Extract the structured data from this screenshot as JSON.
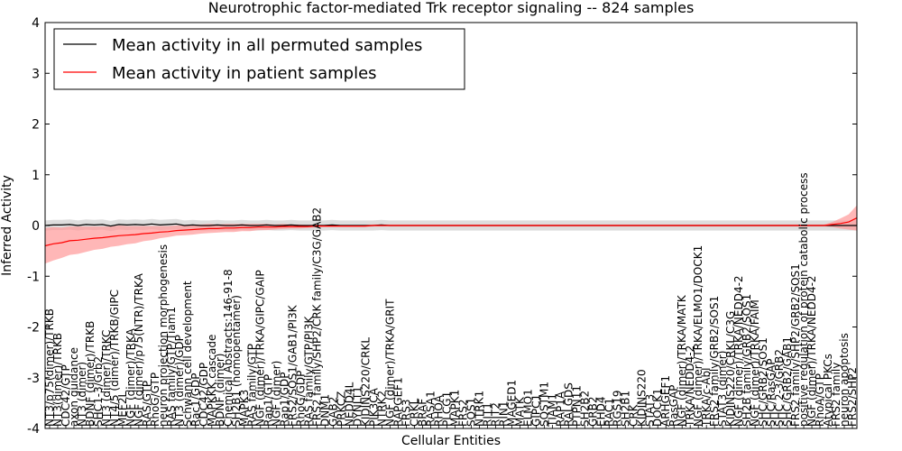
{
  "chart_data": {
    "type": "line",
    "title": "Neurotrophic factor-mediated Trk receptor signaling -- 824 samples",
    "xlabel": "Cellular Entities",
    "ylabel": "Inferred Activity",
    "ylim": [
      -4,
      4
    ],
    "yticks": [
      -4,
      -3,
      -2,
      -1,
      0,
      1,
      2,
      3,
      4
    ],
    "grid": false,
    "legend_position": "top-left",
    "x_count": 100,
    "series": [
      {
        "name": "Mean activity in all permuted samples",
        "color": "#000000",
        "band_color": "#c8c8c8",
        "mean": [
          0.0,
          0.01,
          0.01,
          0.02,
          0.0,
          0.02,
          0.01,
          0.02,
          -0.01,
          0.02,
          0.01,
          0.02,
          0.01,
          0.03,
          0.01,
          0.02,
          0.03,
          0.0,
          0.01,
          0.0,
          0.0,
          0.01,
          0.0,
          0.0,
          0.01,
          0.0,
          0.0,
          0.01,
          0.0,
          0.0,
          0.01,
          0.0,
          0.0,
          0.0,
          0.0,
          0.01,
          0.0,
          0.0,
          0.0,
          0.0,
          0.0,
          0.01,
          0.0,
          0.0,
          0.0,
          0.0,
          0.0,
          0.0,
          0.0,
          0.0,
          0.0,
          0.0,
          0.0,
          0.0,
          0.0,
          0.0,
          0.0,
          0.0,
          0.0,
          0.0,
          0.0,
          0.0,
          0.0,
          0.0,
          0.0,
          0.0,
          0.0,
          0.0,
          0.0,
          0.0,
          0.0,
          0.0,
          0.0,
          0.0,
          0.0,
          0.0,
          0.0,
          0.0,
          0.0,
          0.0,
          0.0,
          0.0,
          0.0,
          0.0,
          0.0,
          0.0,
          0.0,
          0.0,
          0.0,
          0.0,
          0.0,
          0.0,
          0.0,
          0.0,
          0.0,
          0.0,
          0.0,
          0.0,
          0.0,
          0.0
        ],
        "spread": 0.1
      },
      {
        "name": "Mean activity in patient samples",
        "color": "#ff0000",
        "band_color": "#ff9999",
        "mean": [
          -0.4,
          -0.36,
          -0.34,
          -0.3,
          -0.29,
          -0.27,
          -0.25,
          -0.24,
          -0.22,
          -0.2,
          -0.19,
          -0.18,
          -0.16,
          -0.15,
          -0.13,
          -0.12,
          -0.1,
          -0.09,
          -0.08,
          -0.07,
          -0.06,
          -0.06,
          -0.05,
          -0.05,
          -0.04,
          -0.04,
          -0.03,
          -0.03,
          -0.03,
          -0.02,
          -0.02,
          -0.02,
          -0.02,
          -0.01,
          -0.01,
          -0.01,
          -0.01,
          -0.01,
          -0.01,
          -0.01,
          0.0,
          0.0,
          0.0,
          0.0,
          0.0,
          0.0,
          0.0,
          0.0,
          0.0,
          0.0,
          0.0,
          0.0,
          0.0,
          0.0,
          0.0,
          0.0,
          0.0,
          0.0,
          0.0,
          0.0,
          0.0,
          0.0,
          0.0,
          0.0,
          0.0,
          0.0,
          0.0,
          0.0,
          0.0,
          0.0,
          0.0,
          0.0,
          0.0,
          0.0,
          0.0,
          0.0,
          0.0,
          0.0,
          0.0,
          0.0,
          0.0,
          0.0,
          0.0,
          0.0,
          0.0,
          0.0,
          0.0,
          0.0,
          0.0,
          0.0,
          0.0,
          0.0,
          0.0,
          0.0,
          0.0,
          0.0,
          0.02,
          0.04,
          0.07,
          0.15
        ],
        "spread": [
          0.35,
          0.33,
          0.3,
          0.28,
          0.27,
          0.25,
          0.23,
          0.22,
          0.2,
          0.2,
          0.18,
          0.17,
          0.15,
          0.14,
          0.12,
          0.11,
          0.1,
          0.1,
          0.1,
          0.09,
          0.09,
          0.08,
          0.08,
          0.08,
          0.07,
          0.07,
          0.06,
          0.06,
          0.05,
          0.05,
          0.04,
          0.04,
          0.03,
          0.03,
          0.02,
          0.02,
          0.02,
          0.02,
          0.02,
          0.02,
          0.02,
          0.02,
          0.02,
          0.02,
          0.02,
          0.02,
          0.02,
          0.02,
          0.02,
          0.02,
          0.02,
          0.02,
          0.02,
          0.02,
          0.02,
          0.02,
          0.02,
          0.02,
          0.02,
          0.02,
          0.02,
          0.02,
          0.02,
          0.02,
          0.02,
          0.02,
          0.02,
          0.02,
          0.02,
          0.02,
          0.02,
          0.02,
          0.02,
          0.02,
          0.02,
          0.02,
          0.02,
          0.02,
          0.02,
          0.02,
          0.02,
          0.02,
          0.02,
          0.02,
          0.02,
          0.02,
          0.02,
          0.02,
          0.02,
          0.02,
          0.02,
          0.02,
          0.02,
          0.02,
          0.02,
          0.02,
          0.05,
          0.1,
          0.15,
          0.25
        ]
      }
    ],
    "categories": [
      "NT3/p75(dimer)/TRKB",
      "NT3(dimer)/TRKB",
      "CDC42/GTP",
      "axon guidance",
      "NT3 (dimer)",
      "BDNF (dimer)/TRKB",
      "SHC1-3/Grb2",
      "NT3 (dimer)/TRKC",
      "NT4/5 (dimer)/TRKB/GIPC",
      "MEF2L",
      "NGF (dimer)/TRKA",
      "NGF (dimer)/p75(NTR)/TRKA",
      "RAS/GTP",
      "RhoG/GTP",
      "neuron projection morphogenesis",
      "RAS family/GTP/Tiam1",
      "NT3 (dimer)/GDP",
      "Schwann cell development",
      "Rac1/GDP",
      "CDC42/GDP",
      "MAPKKK cascade",
      "BDNF (dimer)",
      "Chemical Abstracts:146-91-8",
      "SH2B1 (homopentamer)",
      "MAPK3",
      "RAS family/GTP",
      "NGF (dimer)/TRKA/GIPC/GAIP",
      "Rap1/GTP",
      "NGF (dimer)",
      "Rap1/GDP",
      "FRS2/SOS1/GAB1/PI3K",
      "RhoG/GDP",
      "RAS family/GTP/PI3K",
      "FRS2 family/SHP2/CRK family/C3G/GAB2",
      "DNM1",
      "GAB2",
      "PRKCZ",
      "NEDD4L",
      "DYNLT1",
      "KIDINS220/CRKL",
      "PIK3CA",
      "NTRK2",
      "NGF (dimer)/TRKA/GRIT",
      "RAPGEF1",
      "FRS3",
      "CRKL",
      "BRAF",
      "RASA1",
      "RHOA",
      "PLCG1",
      "MAPK1",
      "FRS2",
      "SOS1",
      "NTRK1",
      "RIT1",
      "RIT2",
      "RIN1",
      "MAGED1",
      "MATK",
      "ELMO1",
      "GIPC1",
      "SQSTM1",
      "TIAM1",
      "RAP1A",
      "RALGDS",
      "PTPN11",
      "SH2B2",
      "GRB2",
      "EHD4",
      "RAC1",
      "RGS19",
      "SH2B1",
      "CRK",
      "KIDINS220",
      "STAT3",
      "DOCK1",
      "ARHGEF1",
      "RasGAP",
      "NGF (dimer)/TRKA/MATK",
      "TRKA/NEDD4-2",
      "NGF (dimer)/TRKA/ELMO1/DOCK1",
      "TRKA/c-Abl",
      "FRS2 family/GRB2/SOS1",
      "STAT3 (dimer)",
      "KIDINS220/CRKL/C3G",
      "NGF (dimer)/TRKA/NEDD4-2",
      "SH2B family/GRB2/SOS1",
      "NGF (dimer)/TRKA/FAIM",
      "SHC/GRB2/SOS1",
      "SHC/RasGAP",
      "SHC 2-3/GRB2",
      "SHC/GRB2/GAB1",
      "FRS2 family/SHP2/GRB2/SOS1",
      "positive regulation of protein catabolic process",
      "NGF (dimer)/TRKA/NEDD4-2",
      "RhoA/GTP",
      "Atypical PKCs",
      "FRS2 family",
      "neuron apoptosis",
      "FRS2/SHP2"
    ]
  }
}
